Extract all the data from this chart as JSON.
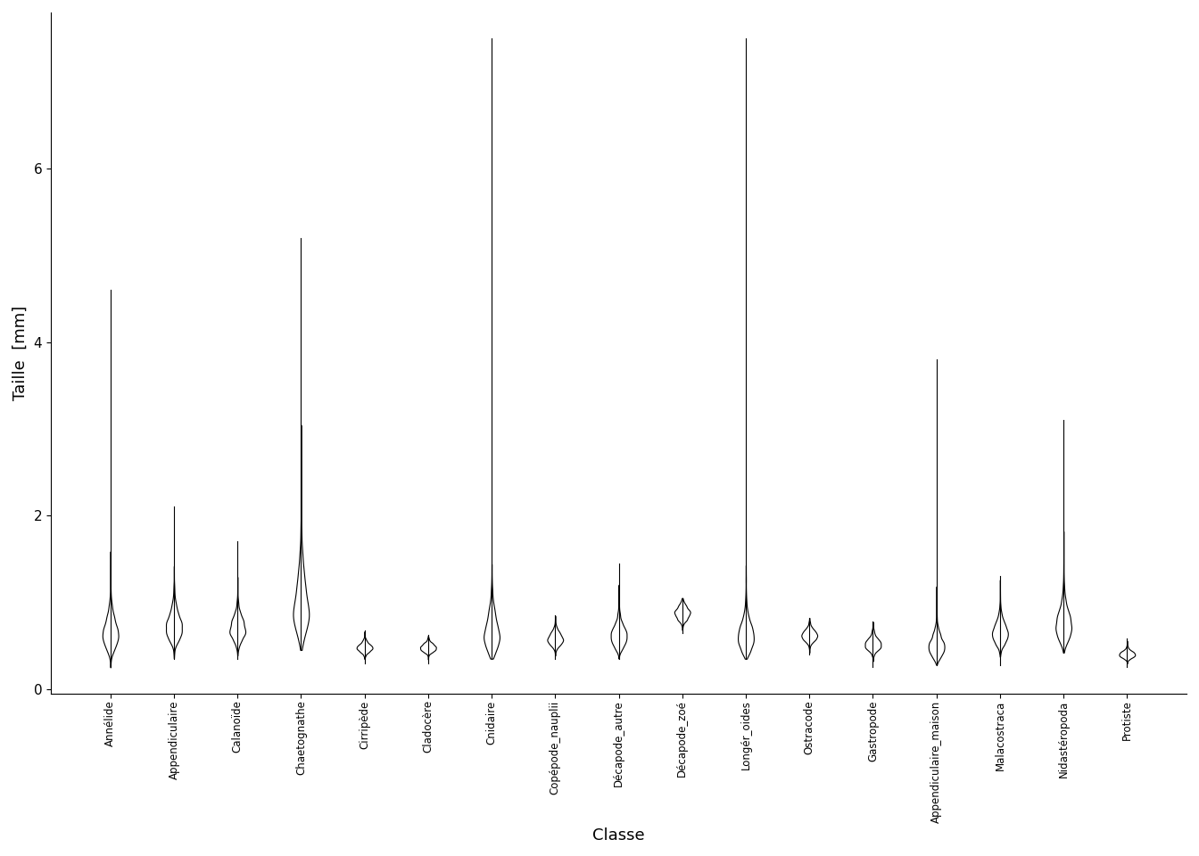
{
  "title": "",
  "xlabel": "Classe",
  "ylabel": "Taille  [mm]",
  "ylim": [
    -0.05,
    7.8
  ],
  "yticks": [
    0,
    2,
    4,
    6
  ],
  "classes": [
    "Annélide",
    "Appendiculaire",
    "Calanoïde",
    "Chaetognathe",
    "Cirripède",
    "Cladocère",
    "Cnidaire",
    "Copépode_nauplii",
    "Décapode_autre",
    "Décapode_zoé",
    "Longér_oides",
    "Ostracode",
    "Gastropode",
    "Appendiculaire_maison",
    "Malacostraca",
    "Nidastéropoda",
    "Protiste"
  ],
  "violin_params": [
    {
      "min": 0.25,
      "max": 4.6,
      "median": 0.65,
      "q1": 0.5,
      "q3": 0.85,
      "sigma": 0.25
    },
    {
      "min": 0.35,
      "max": 2.1,
      "median": 0.72,
      "q1": 0.58,
      "q3": 0.9,
      "sigma": 0.2
    },
    {
      "min": 0.35,
      "max": 1.7,
      "median": 0.7,
      "q1": 0.58,
      "q3": 0.85,
      "sigma": 0.18
    },
    {
      "min": 0.45,
      "max": 5.2,
      "median": 0.95,
      "q1": 0.65,
      "q3": 1.4,
      "sigma": 0.3
    },
    {
      "min": 0.3,
      "max": 0.68,
      "median": 0.48,
      "q1": 0.4,
      "q3": 0.58,
      "sigma": 0.1
    },
    {
      "min": 0.3,
      "max": 0.62,
      "median": 0.48,
      "q1": 0.4,
      "q3": 0.56,
      "sigma": 0.09
    },
    {
      "min": 0.35,
      "max": 7.5,
      "median": 0.65,
      "q1": 0.52,
      "q3": 0.95,
      "sigma": 0.28
    },
    {
      "min": 0.35,
      "max": 0.85,
      "median": 0.58,
      "q1": 0.48,
      "q3": 0.7,
      "sigma": 0.12
    },
    {
      "min": 0.35,
      "max": 1.45,
      "median": 0.62,
      "q1": 0.5,
      "q3": 0.85,
      "sigma": 0.18
    },
    {
      "min": 0.65,
      "max": 1.05,
      "median": 0.88,
      "q1": 0.8,
      "q3": 0.96,
      "sigma": 0.08
    },
    {
      "min": 0.35,
      "max": 7.5,
      "median": 0.62,
      "q1": 0.48,
      "q3": 0.8,
      "sigma": 0.25
    },
    {
      "min": 0.4,
      "max": 0.82,
      "median": 0.62,
      "q1": 0.52,
      "q3": 0.72,
      "sigma": 0.1
    },
    {
      "min": 0.25,
      "max": 0.78,
      "median": 0.52,
      "q1": 0.38,
      "q3": 0.65,
      "sigma": 0.13
    },
    {
      "min": 0.28,
      "max": 3.8,
      "median": 0.5,
      "q1": 0.38,
      "q3": 0.7,
      "sigma": 0.22
    },
    {
      "min": 0.28,
      "max": 1.3,
      "median": 0.65,
      "q1": 0.52,
      "q3": 0.88,
      "sigma": 0.18
    },
    {
      "min": 0.42,
      "max": 3.1,
      "median": 0.75,
      "q1": 0.6,
      "q3": 1.05,
      "sigma": 0.22
    },
    {
      "min": 0.25,
      "max": 0.58,
      "median": 0.4,
      "q1": 0.3,
      "q3": 0.5,
      "sigma": 0.09
    }
  ],
  "face_color": "white",
  "edge_color": "black",
  "line_color": "black",
  "background_color": "white",
  "violin_width": 0.25,
  "linewidth": 0.8
}
